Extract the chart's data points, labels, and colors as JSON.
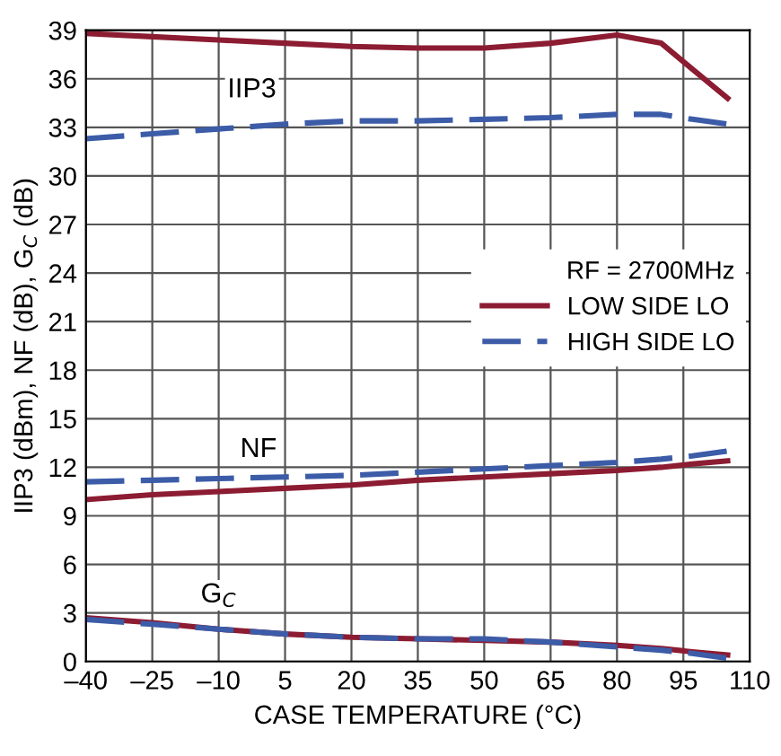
{
  "chart_data": {
    "type": "line",
    "xlabel": "CASE TEMPERATURE (°C)",
    "ylabel": "IIP3 (dBm), NF (dB), G$_{C}$ (dB)",
    "legend_title": "RF = 2700MHz",
    "xlim": [
      -40,
      110
    ],
    "xticks": [
      {
        "value": -40,
        "label": "–40"
      },
      {
        "value": -25,
        "label": "–25"
      },
      {
        "value": -10,
        "label": "–10"
      },
      5,
      20,
      35,
      50,
      65,
      80,
      95,
      110
    ],
    "ylim": [
      0,
      39
    ],
    "yticks": [
      0,
      3,
      6,
      9,
      12,
      15,
      18,
      21,
      24,
      27,
      30,
      33,
      36,
      39
    ],
    "grid": true,
    "legend": "right",
    "x": [
      -40,
      -25,
      -10,
      5,
      20,
      35,
      50,
      65,
      80,
      90,
      97,
      105
    ],
    "series": [
      {
        "name": "LOW SIDE LO",
        "color": "#8c1c32",
        "line_style": "solid",
        "values": [
          38.8,
          38.6,
          38.4,
          38.2,
          38.0,
          37.9,
          37.9,
          38.2,
          38.7,
          38.2,
          36.6,
          34.8
        ]
      },
      {
        "name": "HIGH SIDE LO",
        "color": "#3c5ca8",
        "line_style": "dashed",
        "values": [
          32.3,
          32.6,
          32.9,
          33.2,
          33.4,
          33.4,
          33.5,
          33.6,
          33.8,
          33.8,
          33.5,
          33.2
        ]
      },
      {
        "color": "#8c1c32",
        "line_style": "solid",
        "values": [
          10.0,
          10.3,
          10.5,
          10.7,
          10.9,
          11.2,
          11.4,
          11.6,
          11.8,
          12.0,
          12.2,
          12.4
        ]
      },
      {
        "color": "#3c5ca8",
        "line_style": "dashed",
        "values": [
          11.1,
          11.2,
          11.3,
          11.4,
          11.5,
          11.7,
          11.9,
          12.1,
          12.3,
          12.5,
          12.7,
          13.0
        ]
      },
      {
        "color": "#8c1c32",
        "line_style": "solid",
        "values": [
          2.7,
          2.4,
          2.0,
          1.7,
          1.5,
          1.4,
          1.3,
          1.2,
          1.0,
          0.8,
          0.6,
          0.4
        ]
      },
      {
        "color": "#3c5ca8",
        "line_style": "dashed",
        "values": [
          2.6,
          2.3,
          2.0,
          1.7,
          1.5,
          1.4,
          1.4,
          1.2,
          0.9,
          0.7,
          0.5,
          0.2
        ]
      }
    ],
    "annotations": [
      "IIP3",
      "NF",
      "G$_{C}$"
    ]
  }
}
